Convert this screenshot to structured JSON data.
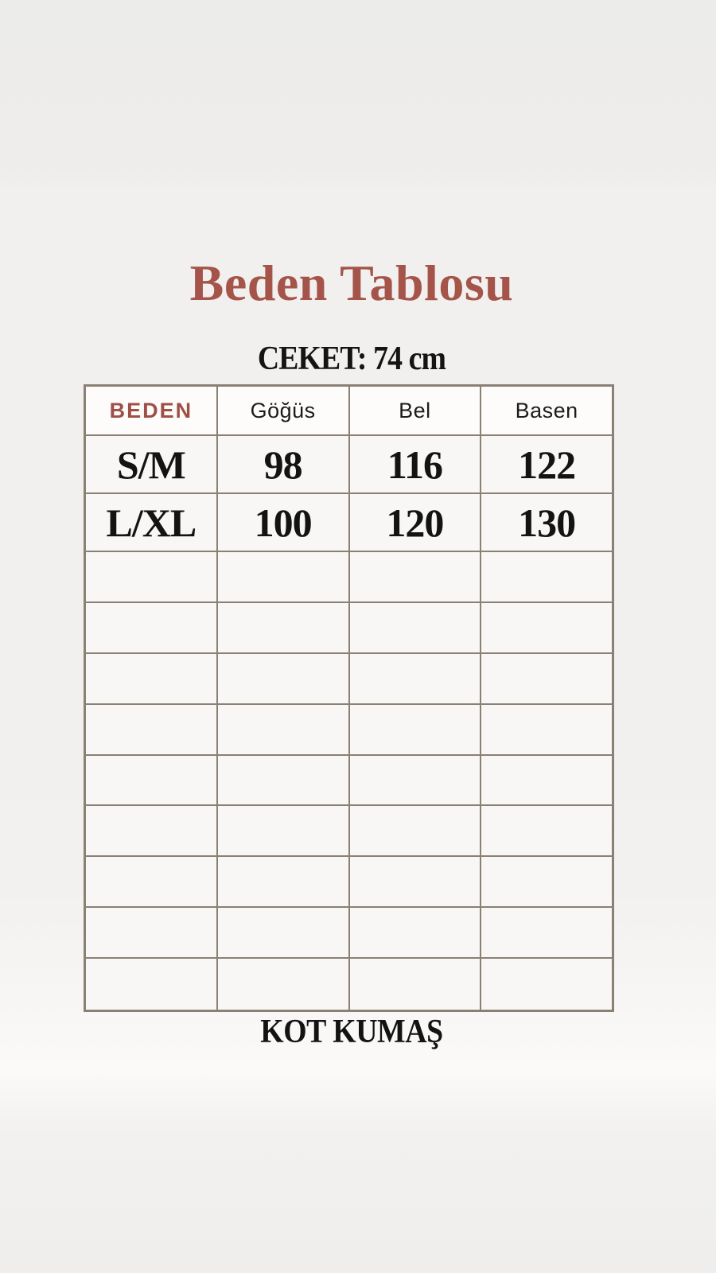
{
  "page": {
    "title": "Beden Tablosu",
    "subtitle": "CEKET: 74 cm",
    "footer_note": "KOT KUMAŞ"
  },
  "size_table": {
    "headers": [
      "BEDEN",
      "Göğüs",
      "Bel",
      "Basen"
    ],
    "rows": [
      {
        "cells": [
          "S/M",
          "98",
          "116",
          "122"
        ]
      },
      {
        "cells": [
          "L/XL",
          "100",
          "120",
          "130"
        ]
      }
    ],
    "empty_row_count": 9
  },
  "chart_data": {
    "type": "table",
    "title": "Beden Tablosu",
    "subtitle": "CEKET: 74 cm",
    "footnote": "KOT KUMAŞ",
    "columns": [
      "BEDEN",
      "Göğüs",
      "Bel",
      "Basen"
    ],
    "rows": [
      [
        "S/M",
        98,
        116,
        122
      ],
      [
        "L/XL",
        100,
        120,
        130
      ]
    ]
  },
  "colors": {
    "title_accent": "#a5544a",
    "beden_header_text": "#9e4f46",
    "table_border": "#8a8073",
    "body_text": "#141414",
    "background": "#f0efed",
    "cell_background": "#f8f7f5",
    "header_cell_background": "#fdfcfa"
  }
}
